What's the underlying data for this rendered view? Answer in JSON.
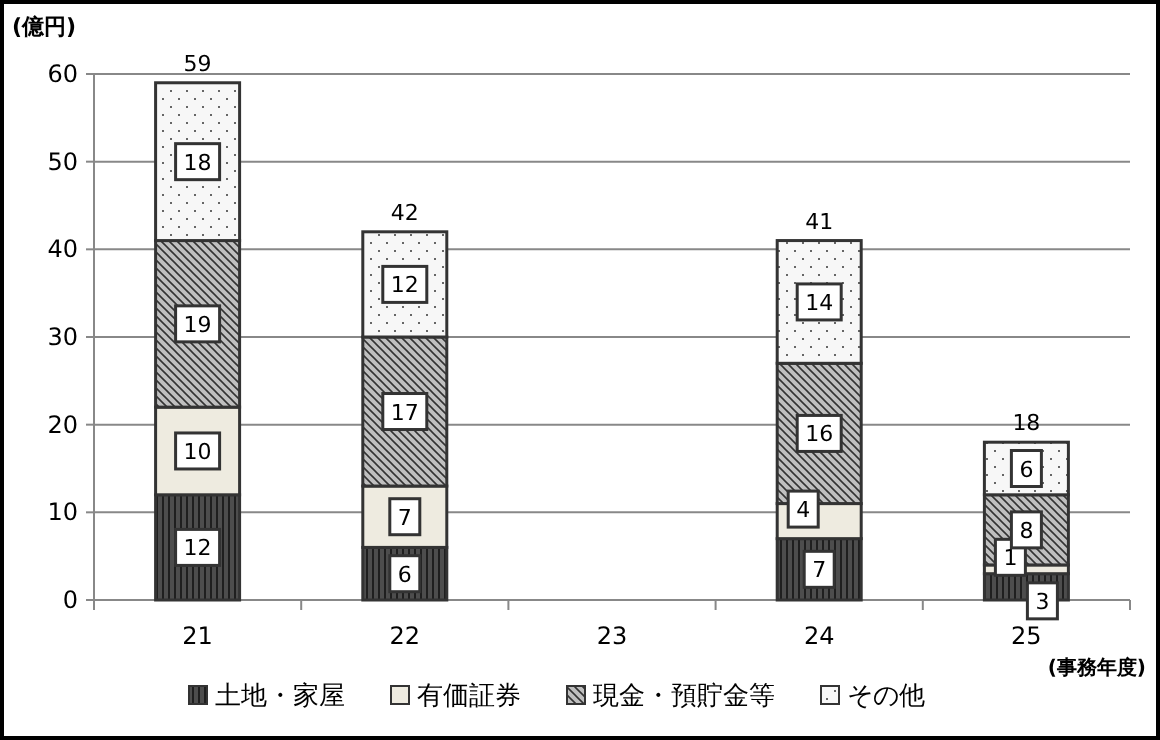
{
  "chart_data": {
    "type": "bar",
    "stacked": true,
    "ylabel": "(億円)",
    "xlabel": "(事務年度)",
    "categories": [
      "21",
      "22",
      "23",
      "24",
      "25"
    ],
    "series": [
      {
        "name": "土地・家屋",
        "color": "#4d4d4d",
        "values": [
          12,
          6,
          null,
          7,
          3
        ]
      },
      {
        "name": "有価証券",
        "color": "#eeebe0",
        "values": [
          10,
          7,
          null,
          4,
          1
        ]
      },
      {
        "name": "現金・預貯金等",
        "color": "#bfbfbf",
        "values": [
          19,
          17,
          null,
          16,
          8
        ]
      },
      {
        "name": "その他",
        "color": "#f7f7f7",
        "values": [
          18,
          12,
          null,
          14,
          6
        ]
      }
    ],
    "totals": [
      "59",
      "42",
      null,
      "41",
      "18"
    ],
    "data_labels": true,
    "ylim": [
      0,
      60
    ],
    "yticks": [
      0,
      10,
      20,
      30,
      40,
      50,
      60
    ],
    "grid": "y",
    "legend": "bottom"
  }
}
